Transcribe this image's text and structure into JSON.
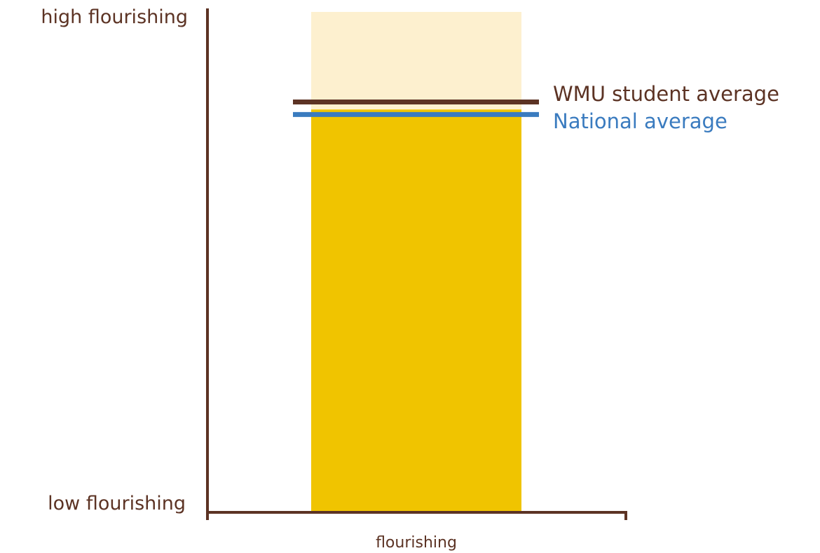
{
  "colors": {
    "axis": "#5c3324",
    "bar_fill": "#f0c400",
    "bar_background": "#fdf0cf",
    "wmu_line": "#5c3324",
    "national_line": "#3a7bbf"
  },
  "chart_data": {
    "type": "bar",
    "categories": [
      "flourishing"
    ],
    "y_axis": {
      "top_label": "high flourishing",
      "bottom_label": "low flourishing",
      "ylim": [
        0,
        100
      ],
      "tick_values": false
    },
    "bar": {
      "category": "flourishing",
      "value": 80.5,
      "max": 100
    },
    "reference_lines": [
      {
        "name": "WMU student average",
        "value": 82
      },
      {
        "name": "National average",
        "value": 79.5
      }
    ],
    "grid": false,
    "legend": "right, inline with reference lines"
  }
}
